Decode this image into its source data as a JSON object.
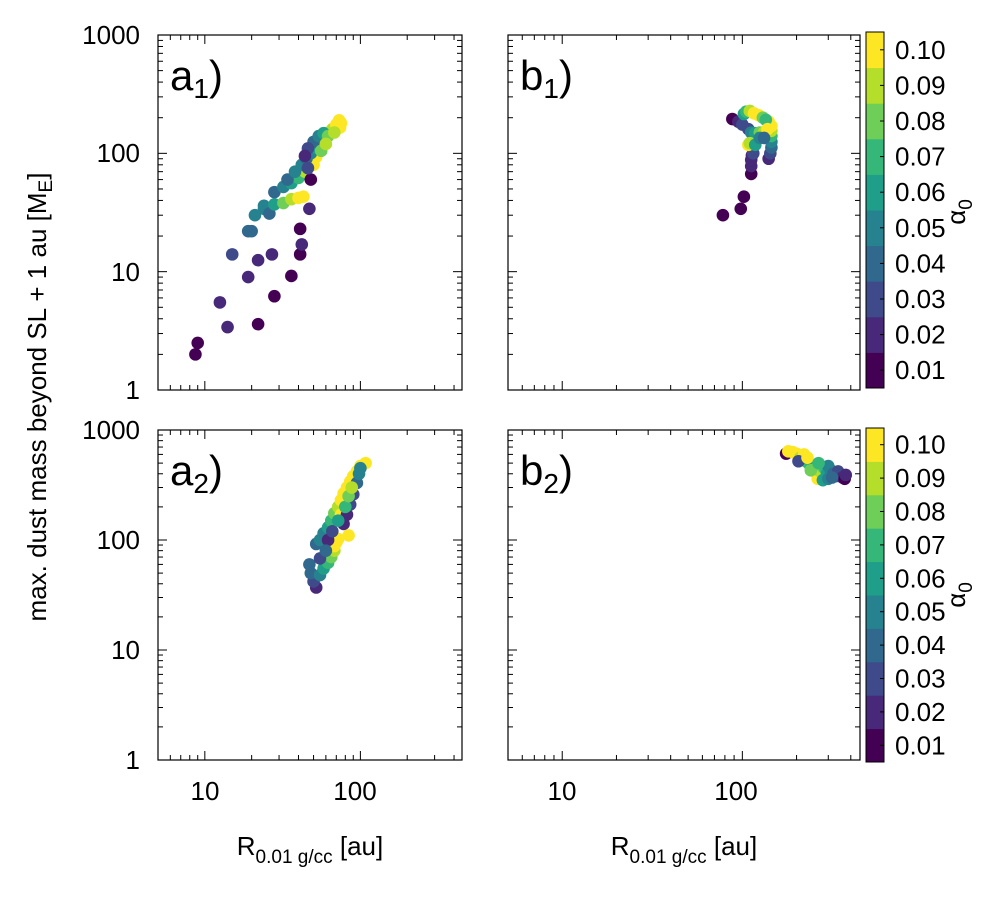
{
  "chart_data": {
    "type": "scatter",
    "ylabel": "max. dust mass beyond SL + 1 au [Mₑ]",
    "ylabel_main": "max. dust mass beyond SL + 1 au [M",
    "ylabel_sub": "E",
    "ylabel_end": "]",
    "xlabel_main": "R",
    "xlabel_sub": "0.01 g/cc",
    "xlabel_end": " [au]",
    "xscale": "log",
    "yscale": "log",
    "xlim": [
      5,
      450
    ],
    "ylim": [
      1,
      1000
    ],
    "x_ticks": [
      "10",
      "100"
    ],
    "y_ticks": [
      "1",
      "10",
      "100",
      "1000"
    ],
    "colorbar": {
      "label_main": "α",
      "label_sub": "0",
      "levels": [
        "0.01",
        "0.02",
        "0.03",
        "0.04",
        "0.05",
        "0.06",
        "0.07",
        "0.08",
        "0.09",
        "0.10"
      ],
      "colors": [
        "#440154",
        "#482878",
        "#3e4a89",
        "#31688e",
        "#26828e",
        "#1f9e89",
        "#35b779",
        "#6ece58",
        "#b5de2b",
        "#fde725"
      ]
    },
    "panels": [
      {
        "id": "a1",
        "label_main": "a",
        "label_sub": "1",
        "label_end": ")",
        "points": [
          {
            "x": 8.7,
            "y": 2.0,
            "alpha": 0.01
          },
          {
            "x": 9.0,
            "y": 2.5,
            "alpha": 0.01
          },
          {
            "x": 12.5,
            "y": 5.5,
            "alpha": 0.02
          },
          {
            "x": 14.0,
            "y": 3.4,
            "alpha": 0.02
          },
          {
            "x": 22.0,
            "y": 3.6,
            "alpha": 0.01
          },
          {
            "x": 28.0,
            "y": 6.2,
            "alpha": 0.01
          },
          {
            "x": 19.0,
            "y": 9.0,
            "alpha": 0.02
          },
          {
            "x": 15.0,
            "y": 14.0,
            "alpha": 0.03
          },
          {
            "x": 22.0,
            "y": 12.5,
            "alpha": 0.02
          },
          {
            "x": 27.0,
            "y": 14.0,
            "alpha": 0.02
          },
          {
            "x": 36.0,
            "y": 9.2,
            "alpha": 0.01
          },
          {
            "x": 41.0,
            "y": 14.0,
            "alpha": 0.01
          },
          {
            "x": 42.0,
            "y": 17.0,
            "alpha": 0.02
          },
          {
            "x": 41.0,
            "y": 23.0,
            "alpha": 0.01
          },
          {
            "x": 47.0,
            "y": 34.0,
            "alpha": 0.02
          },
          {
            "x": 19.0,
            "y": 22.0,
            "alpha": 0.04
          },
          {
            "x": 20.0,
            "y": 22.0,
            "alpha": 0.04
          },
          {
            "x": 21.0,
            "y": 30.0,
            "alpha": 0.05
          },
          {
            "x": 24.0,
            "y": 34.0,
            "alpha": 0.05
          },
          {
            "x": 24.0,
            "y": 36.0,
            "alpha": 0.05
          },
          {
            "x": 26.0,
            "y": 31.0,
            "alpha": 0.04
          },
          {
            "x": 28.0,
            "y": 37.0,
            "alpha": 0.06
          },
          {
            "x": 32.0,
            "y": 38.0,
            "alpha": 0.08
          },
          {
            "x": 36.0,
            "y": 41.0,
            "alpha": 0.09
          },
          {
            "x": 40.0,
            "y": 42.0,
            "alpha": 0.1
          },
          {
            "x": 43.0,
            "y": 43.0,
            "alpha": 0.1
          },
          {
            "x": 28.0,
            "y": 47.0,
            "alpha": 0.04
          },
          {
            "x": 32.0,
            "y": 52.0,
            "alpha": 0.05
          },
          {
            "x": 36.0,
            "y": 56.0,
            "alpha": 0.06
          },
          {
            "x": 40.0,
            "y": 62.0,
            "alpha": 0.07
          },
          {
            "x": 44.0,
            "y": 70.0,
            "alpha": 0.09
          },
          {
            "x": 48.0,
            "y": 60.0,
            "alpha": 0.01
          },
          {
            "x": 50.0,
            "y": 80.0,
            "alpha": 0.1
          },
          {
            "x": 52.0,
            "y": 93.0,
            "alpha": 0.1
          },
          {
            "x": 34.0,
            "y": 60.0,
            "alpha": 0.04
          },
          {
            "x": 38.0,
            "y": 70.0,
            "alpha": 0.05
          },
          {
            "x": 42.0,
            "y": 80.0,
            "alpha": 0.05
          },
          {
            "x": 45.0,
            "y": 90.0,
            "alpha": 0.04
          },
          {
            "x": 48.0,
            "y": 100.0,
            "alpha": 0.05
          },
          {
            "x": 52.0,
            "y": 112.0,
            "alpha": 0.06
          },
          {
            "x": 56.0,
            "y": 125.0,
            "alpha": 0.07
          },
          {
            "x": 60.0,
            "y": 135.0,
            "alpha": 0.07
          },
          {
            "x": 63.0,
            "y": 150.0,
            "alpha": 0.08
          },
          {
            "x": 66.0,
            "y": 160.0,
            "alpha": 0.09
          },
          {
            "x": 70.0,
            "y": 175.0,
            "alpha": 0.1
          },
          {
            "x": 73.0,
            "y": 190.0,
            "alpha": 0.1
          },
          {
            "x": 75.0,
            "y": 180.0,
            "alpha": 0.1
          },
          {
            "x": 74.0,
            "y": 165.0,
            "alpha": 0.1
          },
          {
            "x": 50.0,
            "y": 125.0,
            "alpha": 0.04
          },
          {
            "x": 54.0,
            "y": 140.0,
            "alpha": 0.05
          },
          {
            "x": 58.0,
            "y": 148.0,
            "alpha": 0.06
          },
          {
            "x": 62.0,
            "y": 140.0,
            "alpha": 0.08
          },
          {
            "x": 68.0,
            "y": 150.0,
            "alpha": 0.09
          },
          {
            "x": 46.0,
            "y": 110.0,
            "alpha": 0.03
          },
          {
            "x": 44.0,
            "y": 95.0,
            "alpha": 0.02
          },
          {
            "x": 46.0,
            "y": 75.0,
            "alpha": 0.03
          },
          {
            "x": 56.0,
            "y": 105.0,
            "alpha": 0.08
          },
          {
            "x": 60.0,
            "y": 120.0,
            "alpha": 0.09
          }
        ]
      },
      {
        "id": "b1",
        "label_main": "b",
        "label_sub": "1",
        "label_end": ")",
        "points": [
          {
            "x": 78.0,
            "y": 30.0,
            "alpha": 0.01
          },
          {
            "x": 98.0,
            "y": 34.0,
            "alpha": 0.01
          },
          {
            "x": 102.0,
            "y": 43.0,
            "alpha": 0.01
          },
          {
            "x": 112.0,
            "y": 67.0,
            "alpha": 0.01
          },
          {
            "x": 112.0,
            "y": 78.0,
            "alpha": 0.02
          },
          {
            "x": 112.0,
            "y": 88.0,
            "alpha": 0.02
          },
          {
            "x": 113.0,
            "y": 96.0,
            "alpha": 0.02
          },
          {
            "x": 115.0,
            "y": 100.0,
            "alpha": 0.03
          },
          {
            "x": 140.0,
            "y": 90.0,
            "alpha": 0.02
          },
          {
            "x": 143.0,
            "y": 100.0,
            "alpha": 0.03
          },
          {
            "x": 145.0,
            "y": 112.0,
            "alpha": 0.04
          },
          {
            "x": 145.0,
            "y": 125.0,
            "alpha": 0.05
          },
          {
            "x": 145.0,
            "y": 140.0,
            "alpha": 0.07
          },
          {
            "x": 145.0,
            "y": 155.0,
            "alpha": 0.09
          },
          {
            "x": 145.0,
            "y": 170.0,
            "alpha": 0.1
          },
          {
            "x": 140.0,
            "y": 185.0,
            "alpha": 0.1
          },
          {
            "x": 88.0,
            "y": 195.0,
            "alpha": 0.01
          },
          {
            "x": 95.0,
            "y": 185.0,
            "alpha": 0.02
          },
          {
            "x": 100.0,
            "y": 175.0,
            "alpha": 0.03
          },
          {
            "x": 102.0,
            "y": 215.0,
            "alpha": 0.06
          },
          {
            "x": 105.0,
            "y": 225.0,
            "alpha": 0.07
          },
          {
            "x": 110.0,
            "y": 228.0,
            "alpha": 0.09
          },
          {
            "x": 116.0,
            "y": 218.0,
            "alpha": 0.1
          },
          {
            "x": 123.0,
            "y": 210.0,
            "alpha": 0.1
          },
          {
            "x": 130.0,
            "y": 200.0,
            "alpha": 0.08
          },
          {
            "x": 135.0,
            "y": 192.0,
            "alpha": 0.07
          },
          {
            "x": 108.0,
            "y": 160.0,
            "alpha": 0.03
          },
          {
            "x": 112.0,
            "y": 150.0,
            "alpha": 0.05
          },
          {
            "x": 118.0,
            "y": 148.0,
            "alpha": 0.06
          },
          {
            "x": 125.0,
            "y": 150.0,
            "alpha": 0.08
          },
          {
            "x": 132.0,
            "y": 150.0,
            "alpha": 0.09
          },
          {
            "x": 138.0,
            "y": 160.0,
            "alpha": 0.1
          },
          {
            "x": 108.0,
            "y": 118.0,
            "alpha": 0.1
          },
          {
            "x": 110.0,
            "y": 122.0,
            "alpha": 0.09
          },
          {
            "x": 118.0,
            "y": 118.0,
            "alpha": 0.06
          },
          {
            "x": 125.0,
            "y": 135.0,
            "alpha": 0.05
          },
          {
            "x": 132.0,
            "y": 135.0,
            "alpha": 0.04
          }
        ]
      },
      {
        "id": "a2",
        "label_main": "a",
        "label_sub": "2",
        "label_end": ")",
        "points": [
          {
            "x": 52.0,
            "y": 37.0,
            "alpha": 0.02
          },
          {
            "x": 50.0,
            "y": 42.0,
            "alpha": 0.03
          },
          {
            "x": 48.0,
            "y": 50.0,
            "alpha": 0.04
          },
          {
            "x": 47.0,
            "y": 60.0,
            "alpha": 0.04
          },
          {
            "x": 55.0,
            "y": 48.0,
            "alpha": 0.05
          },
          {
            "x": 58.0,
            "y": 55.0,
            "alpha": 0.06
          },
          {
            "x": 62.0,
            "y": 62.0,
            "alpha": 0.07
          },
          {
            "x": 65.0,
            "y": 70.0,
            "alpha": 0.08
          },
          {
            "x": 68.0,
            "y": 80.0,
            "alpha": 0.09
          },
          {
            "x": 68.0,
            "y": 88.0,
            "alpha": 0.1
          },
          {
            "x": 70.0,
            "y": 95.0,
            "alpha": 0.1
          },
          {
            "x": 72.0,
            "y": 102.0,
            "alpha": 0.1
          },
          {
            "x": 52.0,
            "y": 92.0,
            "alpha": 0.04
          },
          {
            "x": 55.0,
            "y": 100.0,
            "alpha": 0.05
          },
          {
            "x": 58.0,
            "y": 115.0,
            "alpha": 0.05
          },
          {
            "x": 62.0,
            "y": 130.0,
            "alpha": 0.06
          },
          {
            "x": 65.0,
            "y": 150.0,
            "alpha": 0.07
          },
          {
            "x": 68.0,
            "y": 175.0,
            "alpha": 0.08
          },
          {
            "x": 72.0,
            "y": 200.0,
            "alpha": 0.09
          },
          {
            "x": 75.0,
            "y": 230.0,
            "alpha": 0.1
          },
          {
            "x": 78.0,
            "y": 265.0,
            "alpha": 0.1
          },
          {
            "x": 82.0,
            "y": 300.0,
            "alpha": 0.1
          },
          {
            "x": 86.0,
            "y": 340.0,
            "alpha": 0.1
          },
          {
            "x": 90.0,
            "y": 380.0,
            "alpha": 0.1
          },
          {
            "x": 95.0,
            "y": 420.0,
            "alpha": 0.1
          },
          {
            "x": 100.0,
            "y": 470.0,
            "alpha": 0.1
          },
          {
            "x": 108.0,
            "y": 500.0,
            "alpha": 0.1
          },
          {
            "x": 75.0,
            "y": 170.0,
            "alpha": 0.1
          },
          {
            "x": 78.0,
            "y": 140.0,
            "alpha": 0.02
          },
          {
            "x": 82.0,
            "y": 170.0,
            "alpha": 0.02
          },
          {
            "x": 86.0,
            "y": 210.0,
            "alpha": 0.03
          },
          {
            "x": 90.0,
            "y": 260.0,
            "alpha": 0.03
          },
          {
            "x": 95.0,
            "y": 330.0,
            "alpha": 0.04
          },
          {
            "x": 98.0,
            "y": 400.0,
            "alpha": 0.05
          },
          {
            "x": 100.0,
            "y": 450.0,
            "alpha": 0.05
          },
          {
            "x": 62.0,
            "y": 100.0,
            "alpha": 0.02
          },
          {
            "x": 66.0,
            "y": 120.0,
            "alpha": 0.03
          },
          {
            "x": 72.0,
            "y": 150.0,
            "alpha": 0.06
          },
          {
            "x": 80.0,
            "y": 200.0,
            "alpha": 0.07
          },
          {
            "x": 84.0,
            "y": 250.0,
            "alpha": 0.08
          },
          {
            "x": 88.0,
            "y": 300.0,
            "alpha": 0.09
          },
          {
            "x": 84.0,
            "y": 110.0,
            "alpha": 0.1
          },
          {
            "x": 55.0,
            "y": 68.0,
            "alpha": 0.03
          },
          {
            "x": 60.0,
            "y": 80.0,
            "alpha": 0.04
          }
        ]
      },
      {
        "id": "b2",
        "label_main": "b",
        "label_sub": "2",
        "label_end": ")",
        "points": [
          {
            "x": 175.0,
            "y": 610.0,
            "alpha": 0.01
          },
          {
            "x": 180.0,
            "y": 640.0,
            "alpha": 0.1
          },
          {
            "x": 190.0,
            "y": 630.0,
            "alpha": 0.1
          },
          {
            "x": 200.0,
            "y": 610.0,
            "alpha": 0.1
          },
          {
            "x": 210.0,
            "y": 560.0,
            "alpha": 0.09
          },
          {
            "x": 220.0,
            "y": 600.0,
            "alpha": 0.1
          },
          {
            "x": 225.0,
            "y": 520.0,
            "alpha": 0.08
          },
          {
            "x": 235.0,
            "y": 490.0,
            "alpha": 0.07
          },
          {
            "x": 250.0,
            "y": 470.0,
            "alpha": 0.06
          },
          {
            "x": 255.0,
            "y": 440.0,
            "alpha": 0.1
          },
          {
            "x": 260.0,
            "y": 400.0,
            "alpha": 0.1
          },
          {
            "x": 262.0,
            "y": 360.0,
            "alpha": 0.1
          },
          {
            "x": 270.0,
            "y": 420.0,
            "alpha": 0.09
          },
          {
            "x": 280.0,
            "y": 460.0,
            "alpha": 0.08
          },
          {
            "x": 290.0,
            "y": 440.0,
            "alpha": 0.07
          },
          {
            "x": 295.0,
            "y": 400.0,
            "alpha": 0.06
          },
          {
            "x": 300.0,
            "y": 470.0,
            "alpha": 0.05
          },
          {
            "x": 310.0,
            "y": 430.0,
            "alpha": 0.05
          },
          {
            "x": 320.0,
            "y": 400.0,
            "alpha": 0.04
          },
          {
            "x": 330.0,
            "y": 380.0,
            "alpha": 0.04
          },
          {
            "x": 340.0,
            "y": 420.0,
            "alpha": 0.03
          },
          {
            "x": 350.0,
            "y": 390.0,
            "alpha": 0.03
          },
          {
            "x": 360.0,
            "y": 370.0,
            "alpha": 0.02
          },
          {
            "x": 370.0,
            "y": 360.0,
            "alpha": 0.01
          },
          {
            "x": 375.0,
            "y": 390.0,
            "alpha": 0.02
          },
          {
            "x": 280.0,
            "y": 350.0,
            "alpha": 0.06
          },
          {
            "x": 300.0,
            "y": 360.0,
            "alpha": 0.05
          },
          {
            "x": 240.0,
            "y": 430.0,
            "alpha": 0.08
          },
          {
            "x": 205.0,
            "y": 520.0,
            "alpha": 0.03
          },
          {
            "x": 230.0,
            "y": 560.0,
            "alpha": 0.1
          },
          {
            "x": 265.0,
            "y": 500.0,
            "alpha": 0.07
          },
          {
            "x": 315.0,
            "y": 370.0,
            "alpha": 0.04
          }
        ]
      }
    ]
  }
}
